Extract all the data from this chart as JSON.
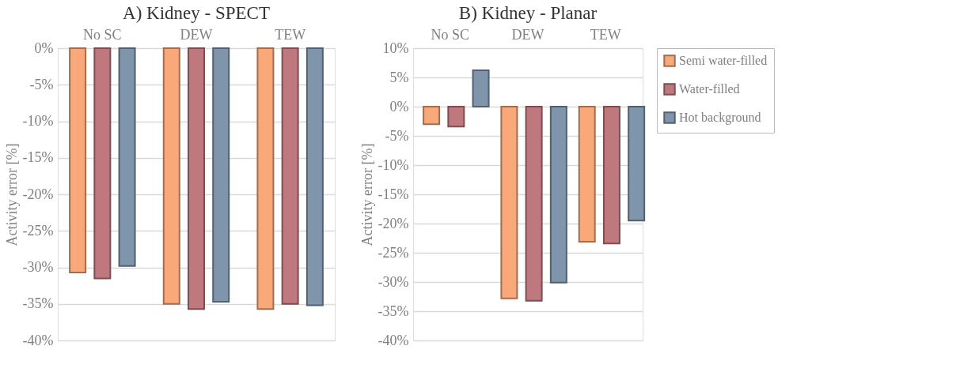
{
  "chart_data": [
    {
      "type": "bar",
      "title": "A) Kidney - SPECT",
      "ylabel": "Activity error [%]",
      "categories": [
        "No SC",
        "DEW",
        "TEW"
      ],
      "series": [
        {
          "color": "#f9a87a",
          "values": [
            -30.7,
            -35.0,
            -35.7
          ]
        },
        {
          "color": "#c0787f",
          "values": [
            -31.5,
            -35.7,
            -35.0
          ]
        },
        {
          "color": "#7f95ab",
          "values": [
            -29.8,
            -34.7,
            -35.2
          ]
        }
      ],
      "ylim": [
        -40,
        0
      ],
      "yticks": [
        {
          "value": -40,
          "label": "-40%"
        },
        {
          "value": -35,
          "label": "-35%"
        },
        {
          "value": -30,
          "label": "-30%"
        },
        {
          "value": -25,
          "label": "-25%"
        },
        {
          "value": -20,
          "label": "-20%"
        },
        {
          "value": -15,
          "label": "-15%"
        },
        {
          "value": -10,
          "label": "-10%"
        },
        {
          "value": -5,
          "label": "-5%"
        },
        {
          "value": 0,
          "label": "0%"
        }
      ],
      "grid": "y",
      "legend": false
    },
    {
      "type": "bar",
      "title": "B) Kidney - Planar",
      "ylabel": "Activity error [%]",
      "categories": [
        "No SC",
        "DEW",
        "TEW"
      ],
      "series": [
        {
          "name": "Semi water-filled",
          "color": "#f9a87a",
          "values": [
            -3.0,
            -32.8,
            -23.1
          ]
        },
        {
          "name": "Water-filled",
          "color": "#c0787f",
          "values": [
            -3.4,
            -33.2,
            -23.4
          ]
        },
        {
          "name": "Hot background",
          "color": "#7f95ab",
          "values": [
            6.2,
            -30.1,
            -19.5
          ]
        }
      ],
      "ylim": [
        -40,
        10
      ],
      "yticks": [
        {
          "value": -40,
          "label": "-40%"
        },
        {
          "value": -35,
          "label": "-35%"
        },
        {
          "value": -30,
          "label": "-30%"
        },
        {
          "value": -25,
          "label": "-25%"
        },
        {
          "value": -20,
          "label": "-20%"
        },
        {
          "value": -15,
          "label": "-15%"
        },
        {
          "value": -10,
          "label": "-10%"
        },
        {
          "value": -5,
          "label": "-5%"
        },
        {
          "value": 0,
          "label": "0%"
        },
        {
          "value": 5,
          "label": "5%"
        },
        {
          "value": 10,
          "label": "10%"
        }
      ],
      "grid": "y",
      "legend": "top right"
    }
  ]
}
